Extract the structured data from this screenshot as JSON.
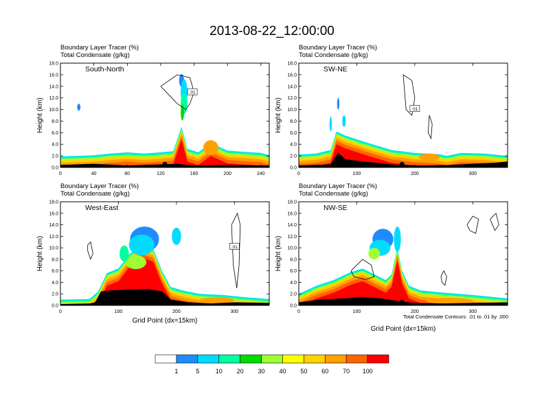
{
  "figure": {
    "title": "2013-08-22_12:00:00",
    "xlabel": "Grid Point (dx=15km)",
    "ylabel": "Height (km)",
    "header_line1": "Boundary Layer Tracer    (%)",
    "header_line2": "Total Condensate    (g/kg)",
    "contour_note": "Total Condensate Contours: .01 to .01 by .000",
    "contour_label": ".01"
  },
  "colorbar": {
    "colors": [
      "#ffffff",
      "#1e8cff",
      "#00dcff",
      "#00ffa0",
      "#00dc00",
      "#a0ff32",
      "#ffff00",
      "#ffd200",
      "#ffa000",
      "#ff6400",
      "#ff0000"
    ],
    "labels": [
      "1",
      "5",
      "10",
      "20",
      "30",
      "40",
      "50",
      "60",
      "70",
      "100"
    ]
  },
  "chart_data": [
    {
      "type": "heatmap",
      "panel_label": "South-North",
      "xlim": [
        0,
        250
      ],
      "xticks": [
        "0",
        "40",
        "80",
        "120",
        "160",
        "200",
        "240"
      ],
      "ylim": [
        0,
        18
      ],
      "yticks": [
        "0.0",
        "2.0",
        "4.0",
        "6.0",
        "8.0",
        "10.0",
        "12.0",
        "14.0",
        "16.0",
        "18.0"
      ],
      "marker_x": 125,
      "profile": [
        [
          0,
          1.9
        ],
        [
          20,
          2.0
        ],
        [
          40,
          2.1
        ],
        [
          60,
          2.4
        ],
        [
          80,
          2.6
        ],
        [
          100,
          2.4
        ],
        [
          120,
          2.6
        ],
        [
          135,
          2.8
        ],
        [
          145,
          7.0
        ],
        [
          152,
          3.2
        ],
        [
          165,
          2.6
        ],
        [
          180,
          4.2
        ],
        [
          200,
          2.9
        ],
        [
          220,
          2.7
        ],
        [
          240,
          2.5
        ],
        [
          250,
          2.1
        ]
      ],
      "terrain": [
        [
          0,
          0.4
        ],
        [
          40,
          0.6
        ],
        [
          80,
          0.3
        ],
        [
          120,
          0.5
        ],
        [
          140,
          0.6
        ],
        [
          160,
          0.3
        ],
        [
          200,
          0.4
        ],
        [
          250,
          0.3
        ]
      ],
      "blobs": [
        [
          145,
          15.0,
          3,
          1.1,
          "#1e8cff"
        ],
        [
          148,
          13.0,
          4,
          2.2,
          "#00dcff"
        ],
        [
          148,
          11.0,
          4,
          1.8,
          "#00ffa0"
        ],
        [
          146,
          9.5,
          2,
          1.4,
          "#00dc00"
        ],
        [
          180,
          3.4,
          9,
          1.3,
          "#ffa000"
        ],
        [
          22,
          10.4,
          2,
          0.6,
          "#1e8cff"
        ]
      ],
      "contours": [
        [
          [
            120,
            14.0
          ],
          [
            140,
            16.0
          ],
          [
            155,
            15.5
          ],
          [
            160,
            13.0
          ],
          [
            155,
            11.0
          ],
          [
            150,
            10.0
          ],
          [
            140,
            11.0
          ],
          [
            130,
            12.5
          ],
          [
            120,
            14.0
          ]
        ],
        [
          [
            270,
            16.0
          ],
          [
            280,
            17.0
          ],
          [
            282,
            15.0
          ],
          [
            275,
            13.0
          ],
          [
            270,
            14.0
          ],
          [
            270,
            16.0
          ]
        ]
      ],
      "labels": [
        [
          158,
          13.0
        ],
        [
          270,
          7.8
        ]
      ]
    },
    {
      "type": "heatmap",
      "panel_label": "SW-NE",
      "xlim": [
        0,
        360
      ],
      "xticks": [
        "0",
        "100",
        "200",
        "300"
      ],
      "ylim": [
        0,
        18
      ],
      "yticks": [
        "0.0",
        "2.0",
        "4.0",
        "6.0",
        "8.0",
        "10.0",
        "12.0",
        "14.0",
        "16.0",
        "18.0"
      ],
      "marker_x": 178,
      "profile": [
        [
          0,
          2.2
        ],
        [
          30,
          2.4
        ],
        [
          55,
          3.0
        ],
        [
          65,
          6.2
        ],
        [
          80,
          5.5
        ],
        [
          120,
          4.2
        ],
        [
          160,
          3.0
        ],
        [
          200,
          2.5
        ],
        [
          240,
          2.3
        ],
        [
          255,
          2.0
        ],
        [
          280,
          2.5
        ],
        [
          320,
          2.4
        ],
        [
          360,
          2.0
        ]
      ],
      "terrain": [
        [
          0,
          0.3
        ],
        [
          55,
          0.5
        ],
        [
          68,
          2.5
        ],
        [
          80,
          1.4
        ],
        [
          110,
          1.0
        ],
        [
          160,
          0.5
        ],
        [
          210,
          0.3
        ],
        [
          260,
          0.4
        ],
        [
          300,
          0.6
        ],
        [
          340,
          0.8
        ],
        [
          360,
          1.0
        ]
      ],
      "blobs": [
        [
          55,
          7.5,
          2,
          1.3,
          "#00dcff"
        ],
        [
          68,
          11.0,
          2,
          1.0,
          "#1e8cff"
        ],
        [
          78,
          8.0,
          3,
          1.0,
          "#00dcff"
        ],
        [
          225,
          1.8,
          18,
          0.6,
          "#ffa000"
        ]
      ],
      "contours": [
        [
          [
            180,
            16.0
          ],
          [
            195,
            15.0
          ],
          [
            200,
            12.0
          ],
          [
            195,
            9.0
          ],
          [
            185,
            10.0
          ],
          [
            180,
            16.0
          ]
        ],
        [
          [
            225,
            9.0
          ],
          [
            230,
            7.5
          ],
          [
            228,
            5.0
          ],
          [
            223,
            6.0
          ],
          [
            225,
            9.0
          ]
        ]
      ],
      "labels": [
        [
          200,
          10.1
        ]
      ]
    },
    {
      "type": "heatmap",
      "panel_label": "West-East",
      "xlim": [
        0,
        360
      ],
      "xticks": [
        "0",
        "100",
        "200",
        "300"
      ],
      "ylim": [
        0,
        18
      ],
      "yticks": [
        "0.0",
        "2.0",
        "4.0",
        "6.0",
        "8.0",
        "10.0",
        "12.0",
        "14.0",
        "16.0",
        "18.0"
      ],
      "marker_x": 180,
      "profile": [
        [
          0,
          1.0
        ],
        [
          50,
          1.1
        ],
        [
          65,
          2.4
        ],
        [
          80,
          5.6
        ],
        [
          100,
          6.4
        ],
        [
          120,
          9.0
        ],
        [
          140,
          10.5
        ],
        [
          160,
          9.8
        ],
        [
          175,
          6.0
        ],
        [
          190,
          3.2
        ],
        [
          210,
          2.6
        ],
        [
          240,
          2.0
        ],
        [
          280,
          1.8
        ],
        [
          320,
          1.4
        ],
        [
          360,
          1.1
        ]
      ],
      "terrain": [
        [
          0,
          0.2
        ],
        [
          50,
          0.3
        ],
        [
          60,
          0.5
        ],
        [
          70,
          2.4
        ],
        [
          90,
          2.6
        ],
        [
          120,
          2.7
        ],
        [
          150,
          2.8
        ],
        [
          175,
          2.4
        ],
        [
          190,
          1.0
        ],
        [
          220,
          0.5
        ],
        [
          260,
          0.3
        ],
        [
          300,
          0.5
        ],
        [
          360,
          0.4
        ]
      ],
      "blobs": [
        [
          145,
          11.5,
          25,
          2.2,
          "#1e8cff"
        ],
        [
          140,
          10.5,
          22,
          1.8,
          "#00dcff"
        ],
        [
          130,
          7.5,
          18,
          1.2,
          "#a0ff32"
        ],
        [
          110,
          9.0,
          8,
          1.4,
          "#00ffa0"
        ],
        [
          200,
          12.0,
          8,
          1.5,
          "#00dcff"
        ],
        [
          270,
          0.9,
          30,
          0.5,
          "#ffa000"
        ]
      ],
      "contours": [
        [
          [
            295,
            14.0
          ],
          [
            305,
            16.0
          ],
          [
            310,
            14.0
          ],
          [
            308,
            7.0
          ],
          [
            304,
            3.0
          ],
          [
            298,
            7.0
          ],
          [
            295,
            14.0
          ]
        ],
        [
          [
            47,
            10.5
          ],
          [
            52,
            11.0
          ],
          [
            56,
            9.0
          ],
          [
            52,
            8.0
          ],
          [
            47,
            9.5
          ],
          [
            47,
            10.5
          ]
        ]
      ],
      "labels": [
        [
          300,
          10.2
        ]
      ]
    },
    {
      "type": "heatmap",
      "panel_label": "NW-SE",
      "xlim": [
        0,
        360
      ],
      "xticks": [
        "0",
        "100",
        "200",
        "300"
      ],
      "ylim": [
        0,
        18
      ],
      "yticks": [
        "0.0",
        "2.0",
        "4.0",
        "6.0",
        "8.0",
        "10.0",
        "12.0",
        "14.0",
        "16.0",
        "18.0"
      ],
      "marker_x": 178,
      "profile": [
        [
          0,
          2.0
        ],
        [
          30,
          3.4
        ],
        [
          60,
          4.4
        ],
        [
          90,
          5.8
        ],
        [
          110,
          6.4
        ],
        [
          130,
          5.4
        ],
        [
          150,
          4.4
        ],
        [
          160,
          5.4
        ],
        [
          170,
          10.0
        ],
        [
          178,
          6.0
        ],
        [
          190,
          3.4
        ],
        [
          210,
          2.6
        ],
        [
          250,
          2.2
        ],
        [
          300,
          1.8
        ],
        [
          330,
          1.5
        ],
        [
          360,
          1.2
        ]
      ],
      "terrain": [
        [
          0,
          0.5
        ],
        [
          40,
          1.0
        ],
        [
          80,
          1.2
        ],
        [
          110,
          1.4
        ],
        [
          140,
          1.2
        ],
        [
          160,
          0.9
        ],
        [
          180,
          0.6
        ],
        [
          200,
          0.4
        ],
        [
          250,
          0.3
        ],
        [
          300,
          0.4
        ],
        [
          360,
          0.5
        ]
      ],
      "blobs": [
        [
          145,
          11.5,
          18,
          1.8,
          "#1e8cff"
        ],
        [
          140,
          10.0,
          18,
          1.4,
          "#00dcff"
        ],
        [
          130,
          9.0,
          10,
          1.0,
          "#a0ff32"
        ],
        [
          170,
          11.5,
          6,
          2.2,
          "#00dcff"
        ],
        [
          260,
          0.8,
          40,
          0.5,
          "#ffa000"
        ]
      ],
      "contours": [
        [
          [
            90,
            6.0
          ],
          [
            110,
            8.0
          ],
          [
            125,
            7.0
          ],
          [
            130,
            5.0
          ],
          [
            115,
            4.5
          ],
          [
            95,
            5.0
          ],
          [
            90,
            6.0
          ]
        ],
        [
          [
            290,
            14.0
          ],
          [
            300,
            15.5
          ],
          [
            310,
            15.0
          ],
          [
            305,
            12.5
          ],
          [
            295,
            13.0
          ],
          [
            290,
            14.0
          ]
        ],
        [
          [
            330,
            15.0
          ],
          [
            340,
            16.0
          ],
          [
            345,
            14.0
          ],
          [
            338,
            13.0
          ],
          [
            330,
            15.0
          ]
        ],
        [
          [
            245,
            5.0
          ],
          [
            250,
            6.0
          ],
          [
            255,
            5.0
          ],
          [
            252,
            3.5
          ],
          [
            247,
            4.0
          ],
          [
            245,
            5.0
          ]
        ]
      ],
      "labels": []
    }
  ]
}
